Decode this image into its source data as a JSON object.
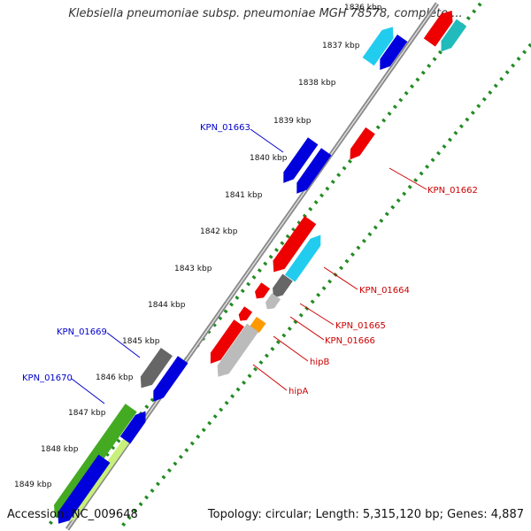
{
  "title": "Klebsiella pneumoniae subsp. pneumoniae MGH 78578, complete ...",
  "footer": {
    "accession": "Accession: NC_009648",
    "summary": "Topology: circular; Length: 5,315,120 bp; Genes: 4,887"
  },
  "ticks": [
    "1836 kbp",
    "1837 kbp",
    "1838 kbp",
    "1839 kbp",
    "1840 kbp",
    "1841 kbp",
    "1842 kbp",
    "1843 kbp",
    "1844 kbp",
    "1845 kbp",
    "1846 kbp",
    "1847 kbp",
    "1848 kbp",
    "1849 kbp"
  ],
  "labels": [
    {
      "text": "KPN_01663",
      "color": "#0000cc"
    },
    {
      "text": "KPN_01662",
      "color": "#cc0000"
    },
    {
      "text": "KPN_01664",
      "color": "#cc0000"
    },
    {
      "text": "KPN_01665",
      "color": "#cc0000"
    },
    {
      "text": "KPN_01666",
      "color": "#cc0000"
    },
    {
      "text": "hipB",
      "color": "#cc0000"
    },
    {
      "text": "hipA",
      "color": "#cc0000"
    },
    {
      "text": "KPN_01669",
      "color": "#0000cc"
    },
    {
      "text": "KPN_01670",
      "color": "#0000cc"
    }
  ],
  "colors": {
    "axis": "#888888",
    "scale_dots": "#228b22",
    "forward": "#0000dd",
    "reverse": "#ee0000",
    "cyan": "#22ccee",
    "grey": "#666666",
    "light_grey": "#bbbbbb",
    "orange": "#ff9900",
    "green": "#44aa22"
  }
}
